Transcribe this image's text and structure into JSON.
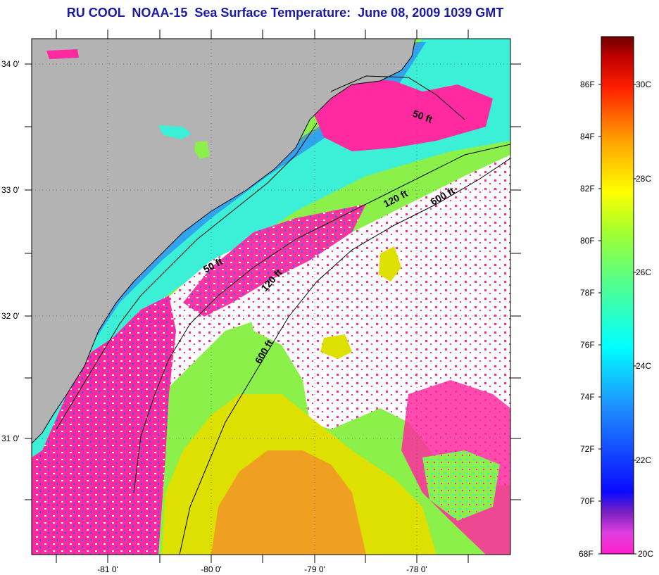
{
  "title": "RU COOL  NOAA-15  Sea Surface Temperature:  June 08, 2009 1039 GMT",
  "map": {
    "lat_ticks": [
      "34 0'",
      "33 0'",
      "32 0'",
      "31 0'"
    ],
    "lon_ticks": [
      "-81 0'",
      "-80 0'",
      "-79 0'",
      "-78 0'"
    ],
    "contour_labels": [
      "50 ft",
      "50 ft",
      "120 ft",
      "120 ft",
      "600 ft",
      "600 ft"
    ],
    "colors": {
      "land": "#b3b3b3",
      "cloud": "#ffffff",
      "cool_pink": "#ff2aa0",
      "green": "#8cf04a",
      "cyan": "#3cf0d8",
      "blue": "#2a64ff",
      "yellow": "#dde000",
      "orange": "#f0a020"
    }
  },
  "colorbar": {
    "f_labels": [
      "86F",
      "84F",
      "82F",
      "80F",
      "78F",
      "76F",
      "74F",
      "72F",
      "70F",
      "68F"
    ],
    "c_labels": [
      "30C",
      "28C",
      "26C",
      "24C",
      "22C",
      "20C"
    ]
  }
}
